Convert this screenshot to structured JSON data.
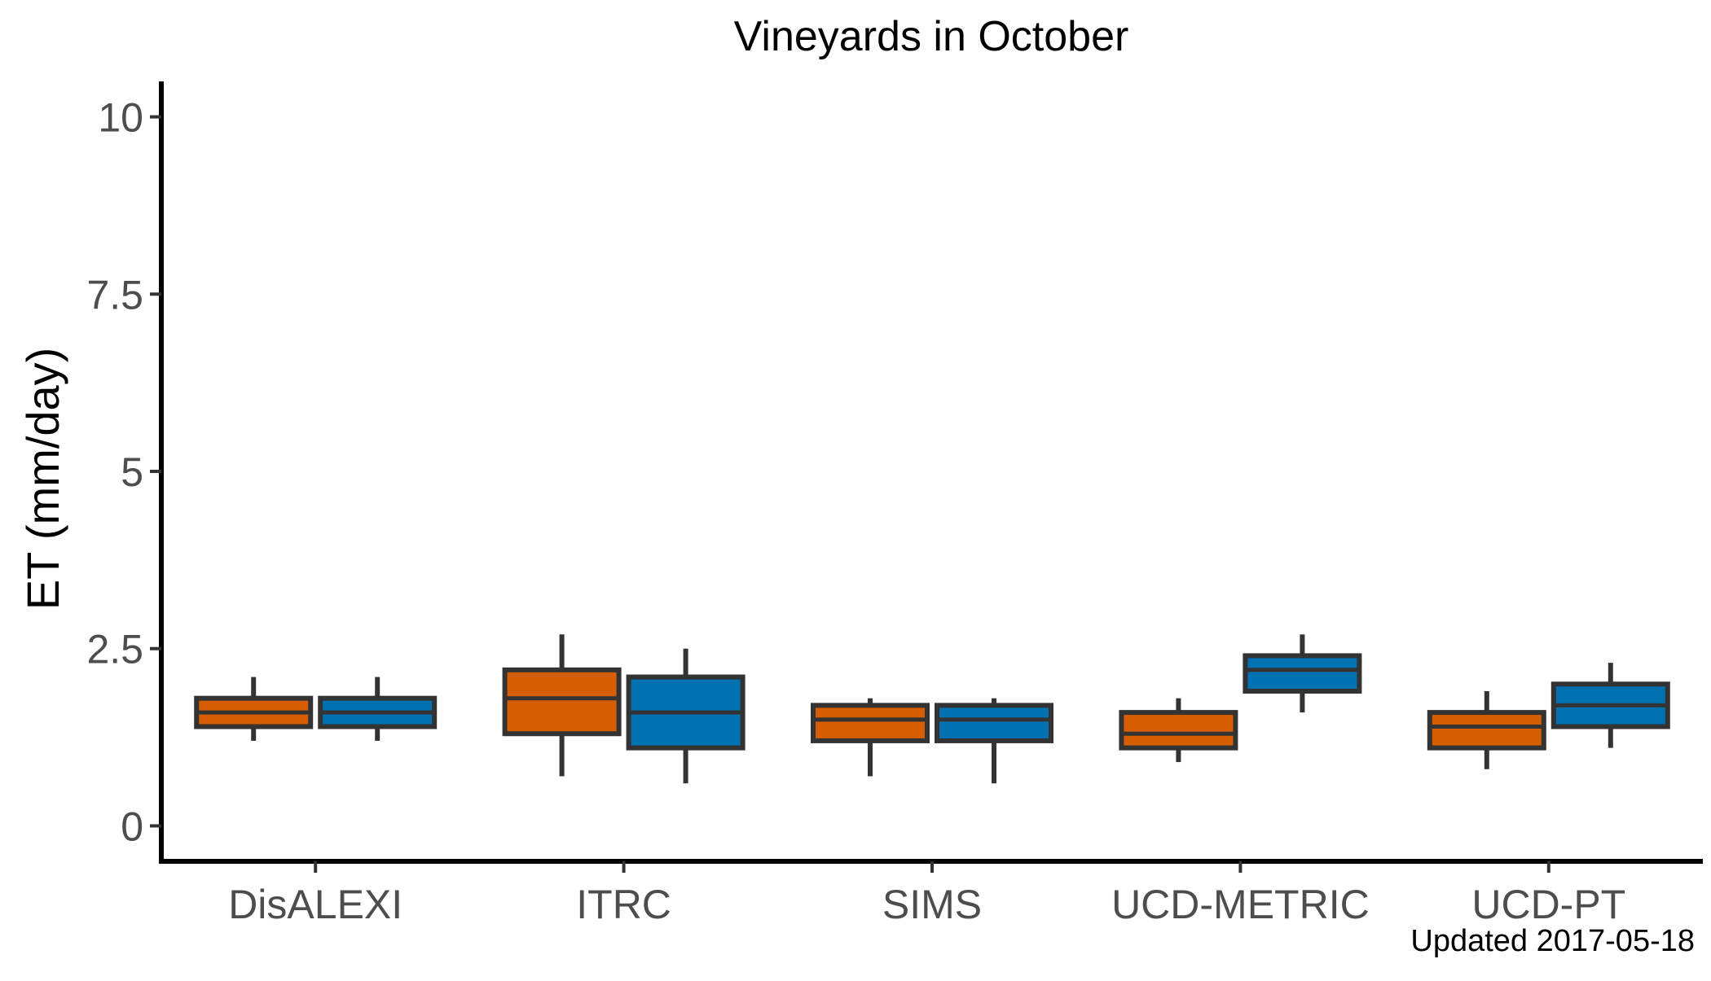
{
  "chart_data": {
    "type": "boxplot",
    "title": "Vineyards in October",
    "xlabel": "",
    "ylabel": "ET (mm/day)",
    "ylim": [
      -0.5,
      10.5
    ],
    "yticks": [
      0,
      2.5,
      5,
      7.5,
      10
    ],
    "ytick_labels": [
      "0",
      "2.5",
      "5",
      "7.5",
      "10"
    ],
    "grid": false,
    "categories": [
      "DisALEXI",
      "ITRC",
      "SIMS",
      "UCD-METRIC",
      "UCD-PT"
    ],
    "series": [
      {
        "color": "#D55E00",
        "boxes": [
          {
            "min": 1.2,
            "q1": 1.4,
            "median": 1.6,
            "q3": 1.8,
            "max": 2.1
          },
          {
            "min": 0.7,
            "q1": 1.3,
            "median": 1.8,
            "q3": 2.2,
            "max": 2.7
          },
          {
            "min": 0.7,
            "q1": 1.2,
            "median": 1.5,
            "q3": 1.7,
            "max": 1.8
          },
          {
            "min": 0.9,
            "q1": 1.1,
            "median": 1.3,
            "q3": 1.6,
            "max": 1.8
          },
          {
            "min": 0.8,
            "q1": 1.1,
            "median": 1.4,
            "q3": 1.6,
            "max": 1.9
          }
        ]
      },
      {
        "color": "#0072B2",
        "boxes": [
          {
            "min": 1.2,
            "q1": 1.4,
            "median": 1.6,
            "q3": 1.8,
            "max": 2.1
          },
          {
            "min": 0.6,
            "q1": 1.1,
            "median": 1.6,
            "q3": 2.1,
            "max": 2.5
          },
          {
            "min": 0.6,
            "q1": 1.2,
            "median": 1.5,
            "q3": 1.7,
            "max": 1.8
          },
          {
            "min": 1.6,
            "q1": 1.9,
            "median": 2.2,
            "q3": 2.4,
            "max": 2.7
          },
          {
            "min": 1.1,
            "q1": 1.4,
            "median": 1.7,
            "q3": 2.0,
            "max": 2.3
          }
        ]
      }
    ],
    "annotation": "Updated  2017-05-18"
  },
  "colors": {
    "box_outline": "#333333",
    "axis": "#000000"
  }
}
